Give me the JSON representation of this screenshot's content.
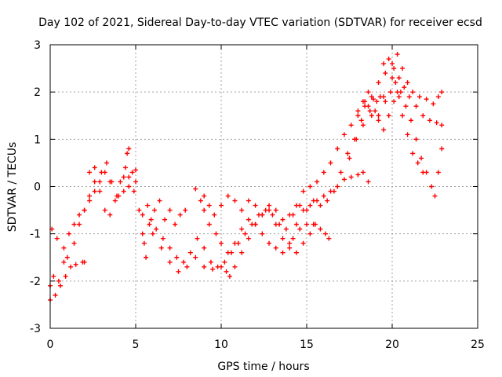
{
  "chart_data": {
    "type": "scatter",
    "title": "Day 102 of 2021, Sidereal Day-to-day VTEC variation (SDTVAR) for receiver ecsd",
    "xlabel": "GPS time / hours",
    "ylabel": "SDTVAR / TECUs",
    "xlim": [
      0,
      25
    ],
    "ylim": [
      -3,
      3
    ],
    "x_ticks": [
      "0",
      "5",
      "10",
      "15",
      "20",
      "25"
    ],
    "y_ticks": [
      "-3",
      "-2",
      "-1",
      "0",
      "1",
      "2",
      "3"
    ],
    "grid": true,
    "marker": "plus",
    "color": "#ff0000",
    "series": [
      {
        "points": [
          [
            0,
            -2.4
          ],
          [
            0.3,
            -2.3
          ],
          [
            0.6,
            -2.1
          ],
          [
            0.9,
            -1.9
          ],
          [
            1.2,
            -1.7
          ],
          [
            1.5,
            -1.65
          ],
          [
            1.9,
            -1.6
          ],
          [
            2.0,
            -1.6
          ]
        ]
      },
      {
        "points": [
          [
            0,
            -2.1
          ],
          [
            0.2,
            -1.9
          ],
          [
            0.5,
            -2.0
          ],
          [
            0.8,
            -1.6
          ],
          [
            1.0,
            -1.5
          ],
          [
            1.4,
            -1.2
          ],
          [
            1.7,
            -0.8
          ],
          [
            2.0,
            -0.5
          ],
          [
            2.3,
            -0.2
          ],
          [
            2.6,
            0.1
          ],
          [
            3.0,
            0.3
          ],
          [
            3.3,
            0.5
          ],
          [
            3.6,
            0.1
          ],
          [
            4.0,
            -0.2
          ],
          [
            4.3,
            0.2
          ],
          [
            4.5,
            0.7
          ],
          [
            4.6,
            0.8
          ]
        ]
      },
      {
        "points": [
          [
            0.1,
            -0.9
          ],
          [
            0.4,
            -1.1
          ],
          [
            0.8,
            -1.3
          ],
          [
            1.1,
            -1.0
          ],
          [
            1.4,
            -0.8
          ],
          [
            1.7,
            -0.6
          ],
          [
            2.0,
            -0.5
          ],
          [
            2.3,
            -0.3
          ],
          [
            2.6,
            -0.1
          ],
          [
            2.9,
            0.1
          ],
          [
            3.2,
            0.3
          ],
          [
            3.5,
            0.1
          ],
          [
            3.9,
            -0.2
          ],
          [
            4.3,
            -0.1
          ],
          [
            4.6,
            0.0
          ],
          [
            4.8,
            0.3
          ],
          [
            5.0,
            0.35
          ]
        ]
      },
      {
        "points": [
          [
            2.3,
            0.3
          ],
          [
            2.6,
            0.4
          ],
          [
            2.9,
            -0.1
          ],
          [
            3.2,
            -0.5
          ],
          [
            3.5,
            -0.6
          ],
          [
            3.8,
            -0.3
          ],
          [
            4.1,
            0.1
          ],
          [
            4.4,
            0.4
          ],
          [
            4.6,
            0.2
          ],
          [
            4.9,
            -0.1
          ],
          [
            5.0,
            0.1
          ]
        ]
      },
      {
        "points": [
          [
            5.2,
            -0.5
          ],
          [
            5.4,
            -1.0
          ],
          [
            5.5,
            -1.2
          ],
          [
            5.6,
            -1.5
          ],
          [
            5.7,
            -0.4
          ],
          [
            5.9,
            -0.7
          ],
          [
            6.1,
            -0.5
          ],
          [
            6.4,
            -0.3
          ],
          [
            6.7,
            -0.7
          ],
          [
            7.0,
            -0.5
          ],
          [
            7.3,
            -0.8
          ],
          [
            7.6,
            -0.6
          ],
          [
            7.9,
            -0.5
          ]
        ]
      },
      {
        "points": [
          [
            5.4,
            -0.6
          ],
          [
            5.8,
            -0.8
          ],
          [
            6.2,
            -0.9
          ],
          [
            6.6,
            -1.1
          ],
          [
            7.0,
            -1.3
          ],
          [
            7.4,
            -1.5
          ],
          [
            7.8,
            -1.6
          ],
          [
            8.2,
            -1.4
          ],
          [
            8.6,
            -1.1
          ],
          [
            9.0,
            -1.3
          ],
          [
            9.4,
            -1.6
          ],
          [
            9.8,
            -1.7
          ],
          [
            10.2,
            -1.6
          ],
          [
            10.6,
            -1.4
          ],
          [
            11.0,
            -1.2
          ],
          [
            11.4,
            -1.0
          ],
          [
            11.8,
            -0.8
          ],
          [
            12.2,
            -0.6
          ],
          [
            12.6,
            -0.5
          ],
          [
            13.0,
            -0.6
          ],
          [
            13.4,
            -0.8
          ],
          [
            13.8,
            -0.9
          ],
          [
            14.2,
            -1.1
          ],
          [
            14.6,
            -0.9
          ],
          [
            15.0,
            -0.8
          ],
          [
            15.4,
            -0.8
          ],
          [
            15.8,
            -0.9
          ],
          [
            16.1,
            -1.0
          ],
          [
            16.3,
            -1.1
          ]
        ]
      },
      {
        "points": [
          [
            6.0,
            -1.0
          ],
          [
            6.5,
            -1.3
          ],
          [
            7.0,
            -1.6
          ],
          [
            7.5,
            -1.8
          ],
          [
            8.0,
            -1.7
          ],
          [
            8.5,
            -1.5
          ],
          [
            9.0,
            -1.7
          ],
          [
            9.5,
            -1.75
          ],
          [
            10.0,
            -1.7
          ],
          [
            10.3,
            -1.8
          ],
          [
            10.5,
            -1.9
          ],
          [
            10.8,
            -1.7
          ],
          [
            11.2,
            -1.4
          ],
          [
            11.6,
            -1.1
          ],
          [
            12.0,
            -0.8
          ],
          [
            12.4,
            -0.6
          ],
          [
            12.8,
            -0.5
          ],
          [
            13.2,
            -0.8
          ],
          [
            13.6,
            -1.1
          ],
          [
            14.0,
            -1.3
          ],
          [
            14.4,
            -1.4
          ],
          [
            14.8,
            -1.2
          ],
          [
            15.2,
            -1.0
          ],
          [
            15.5,
            -0.8
          ]
        ]
      },
      {
        "points": [
          [
            8.5,
            -0.05
          ],
          [
            8.8,
            -0.3
          ],
          [
            9.0,
            -0.5
          ],
          [
            9.3,
            -0.8
          ],
          [
            9.7,
            -1.0
          ],
          [
            10.0,
            -1.2
          ],
          [
            10.4,
            -1.4
          ],
          [
            10.8,
            -1.2
          ],
          [
            11.2,
            -0.9
          ],
          [
            11.6,
            -0.7
          ],
          [
            12.0,
            -0.8
          ],
          [
            12.4,
            -1.0
          ],
          [
            12.8,
            -1.2
          ],
          [
            13.2,
            -1.3
          ],
          [
            13.6,
            -1.4
          ],
          [
            14.0,
            -1.2
          ],
          [
            14.4,
            -0.8
          ],
          [
            14.8,
            -0.5
          ],
          [
            15.2,
            -0.4
          ],
          [
            15.6,
            -0.3
          ],
          [
            16.0,
            -0.2
          ],
          [
            16.4,
            -0.1
          ],
          [
            16.8,
            0.0
          ],
          [
            17.2,
            0.15
          ],
          [
            17.6,
            0.2
          ],
          [
            18.0,
            0.25
          ],
          [
            18.3,
            0.3
          ],
          [
            18.6,
            0.1
          ]
        ]
      },
      {
        "points": [
          [
            9.0,
            -0.2
          ],
          [
            9.3,
            -0.4
          ],
          [
            9.6,
            -0.6
          ],
          [
            10.0,
            -0.4
          ],
          [
            10.4,
            -0.2
          ],
          [
            10.8,
            -0.3
          ],
          [
            11.2,
            -0.5
          ],
          [
            11.6,
            -0.3
          ],
          [
            12.0,
            -0.4
          ],
          [
            12.4,
            -0.6
          ],
          [
            12.8,
            -0.4
          ],
          [
            13.2,
            -0.5
          ],
          [
            13.6,
            -0.7
          ],
          [
            14.0,
            -0.6
          ],
          [
            14.4,
            -0.4
          ],
          [
            14.8,
            -0.1
          ],
          [
            15.2,
            0.0
          ],
          [
            15.6,
            0.1
          ],
          [
            16.0,
            0.3
          ],
          [
            16.4,
            0.5
          ],
          [
            16.8,
            0.8
          ],
          [
            17.2,
            1.1
          ],
          [
            17.6,
            1.3
          ],
          [
            18.0,
            1.5
          ],
          [
            18.4,
            1.7
          ],
          [
            18.8,
            1.9
          ],
          [
            19.2,
            2.2
          ],
          [
            19.5,
            2.6
          ],
          [
            19.8,
            2.7
          ],
          [
            20.1,
            2.5
          ],
          [
            20.4,
            2.3
          ],
          [
            20.7,
            2.1
          ],
          [
            21.0,
            1.9
          ],
          [
            21.4,
            1.7
          ],
          [
            21.8,
            1.5
          ],
          [
            22.2,
            1.4
          ],
          [
            22.6,
            1.35
          ],
          [
            22.9,
            1.3
          ]
        ]
      },
      {
        "points": [
          [
            14.2,
            -0.6
          ],
          [
            14.6,
            -0.4
          ],
          [
            15.0,
            -0.5
          ],
          [
            15.4,
            -0.3
          ],
          [
            15.8,
            -0.4
          ],
          [
            16.2,
            -0.3
          ],
          [
            16.6,
            -0.1
          ],
          [
            17.0,
            0.3
          ],
          [
            17.4,
            0.7
          ],
          [
            17.8,
            1.0
          ],
          [
            18.2,
            1.4
          ],
          [
            18.6,
            1.7
          ],
          [
            19.0,
            1.6
          ],
          [
            19.3,
            1.9
          ],
          [
            19.6,
            2.4
          ],
          [
            20.0,
            2.6
          ],
          [
            20.3,
            2.0
          ],
          [
            20.6,
            1.5
          ],
          [
            20.9,
            1.1
          ],
          [
            21.2,
            0.7
          ],
          [
            21.5,
            0.5
          ],
          [
            21.8,
            0.3
          ]
        ]
      },
      {
        "points": [
          [
            17.5,
            0.6
          ],
          [
            17.9,
            1.0
          ],
          [
            18.3,
            1.3
          ],
          [
            18.7,
            1.6
          ],
          [
            19.1,
            1.8
          ],
          [
            19.5,
            1.9
          ],
          [
            19.9,
            2.0
          ],
          [
            20.2,
            2.2
          ],
          [
            20.5,
            2.0
          ],
          [
            20.8,
            1.7
          ],
          [
            21.1,
            1.4
          ],
          [
            21.4,
            1.0
          ],
          [
            21.7,
            0.6
          ],
          [
            22.0,
            0.3
          ],
          [
            22.3,
            0.0
          ],
          [
            22.5,
            -0.2
          ],
          [
            22.7,
            0.3
          ],
          [
            22.9,
            0.8
          ]
        ]
      },
      {
        "points": [
          [
            18.0,
            1.6
          ],
          [
            18.4,
            1.8
          ],
          [
            18.8,
            1.5
          ],
          [
            19.2,
            1.4
          ],
          [
            19.6,
            1.8
          ],
          [
            20.0,
            2.3
          ],
          [
            20.3,
            2.8
          ],
          [
            20.6,
            2.5
          ],
          [
            20.9,
            2.2
          ],
          [
            21.2,
            2.0
          ],
          [
            21.6,
            1.9
          ],
          [
            22.0,
            1.85
          ],
          [
            22.4,
            1.75
          ],
          [
            22.7,
            1.9
          ],
          [
            22.9,
            2.0
          ]
        ]
      },
      {
        "points": [
          [
            18.3,
            1.8
          ],
          [
            18.6,
            2.0
          ],
          [
            18.9,
            1.85
          ],
          [
            19.2,
            1.5
          ],
          [
            19.5,
            1.2
          ],
          [
            19.8,
            1.5
          ],
          [
            20.1,
            1.8
          ],
          [
            20.4,
            1.9
          ]
        ]
      }
    ]
  }
}
